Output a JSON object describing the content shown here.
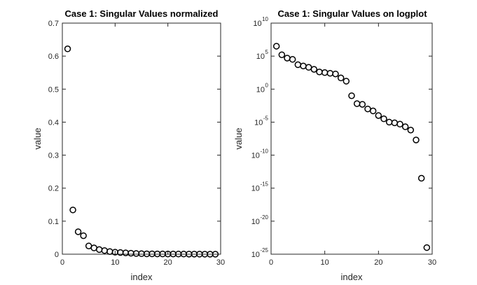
{
  "chart_data": [
    {
      "type": "scatter",
      "title": "Case 1: Singular Values normalized",
      "xlabel": "index",
      "ylabel": "value",
      "xlim": [
        0,
        30
      ],
      "ylim": [
        0,
        0.7
      ],
      "yscale": "linear",
      "xticks": [
        0,
        10,
        20,
        30
      ],
      "yticks": [
        0,
        0.1,
        0.2,
        0.3,
        0.4,
        0.5,
        0.6,
        0.7
      ],
      "xtick_labels": [
        "0",
        "10",
        "20",
        "30"
      ],
      "ytick_labels": [
        "0",
        "0.1",
        "0.2",
        "0.3",
        "0.4",
        "0.5",
        "0.6",
        "0.7"
      ],
      "marker": "circle",
      "x": [
        1,
        2,
        3,
        4,
        5,
        6,
        7,
        8,
        9,
        10,
        11,
        12,
        13,
        14,
        15,
        16,
        17,
        18,
        19,
        20,
        21,
        22,
        23,
        24,
        25,
        26,
        27,
        28,
        29
      ],
      "y": [
        0.622,
        0.134,
        0.068,
        0.056,
        0.025,
        0.019,
        0.014,
        0.011,
        0.008,
        0.006,
        0.005,
        0.004,
        0.003,
        0.002,
        0.0015,
        0.001,
        0.001,
        0.0008,
        0.0007,
        0.0006,
        0.0005,
        0.0004,
        0.0004,
        0.0003,
        0.0003,
        0.0002,
        0.0001,
        1e-05,
        1e-06
      ]
    },
    {
      "type": "scatter",
      "title": "Case 1: Singular Values on logplot",
      "xlabel": "index",
      "ylabel": "value",
      "xlim": [
        0,
        30
      ],
      "ylim": [
        1e-25,
        10000000000.0
      ],
      "yscale": "log",
      "xticks": [
        0,
        10,
        20,
        30
      ],
      "xtick_labels": [
        "0",
        "10",
        "20",
        "30"
      ],
      "yticks": [
        1e-25,
        1e-20,
        1e-15,
        1e-10,
        1e-05,
        1.0,
        100000.0,
        10000000000.0
      ],
      "ytick_labels": [
        {
          "base": "10",
          "exp": "-25"
        },
        {
          "base": "10",
          "exp": "-20"
        },
        {
          "base": "10",
          "exp": "-15"
        },
        {
          "base": "10",
          "exp": "-10"
        },
        {
          "base": "10",
          "exp": "-5"
        },
        {
          "base": "10",
          "exp": "0"
        },
        {
          "base": "10",
          "exp": "5"
        },
        {
          "base": "10",
          "exp": "10"
        }
      ],
      "marker": "circle",
      "x": [
        1,
        2,
        3,
        4,
        5,
        6,
        7,
        8,
        9,
        10,
        11,
        12,
        13,
        14,
        15,
        16,
        17,
        18,
        19,
        20,
        21,
        22,
        23,
        24,
        25,
        26,
        27,
        28,
        29
      ],
      "y": [
        3200000.0,
        160000.0,
        50000.0,
        32000.0,
        5000.0,
        3200.0,
        2000.0,
        1000.0,
        400.0,
        320.0,
        250.0,
        200.0,
        50.0,
        16.0,
        0.1,
        0.0063,
        0.005,
        0.001,
        0.0005,
        0.0001,
        3.2e-05,
        1e-05,
        7.9e-06,
        5e-06,
        2e-06,
        6.3e-07,
        2e-08,
        3.2e-14,
        1e-24
      ]
    }
  ]
}
